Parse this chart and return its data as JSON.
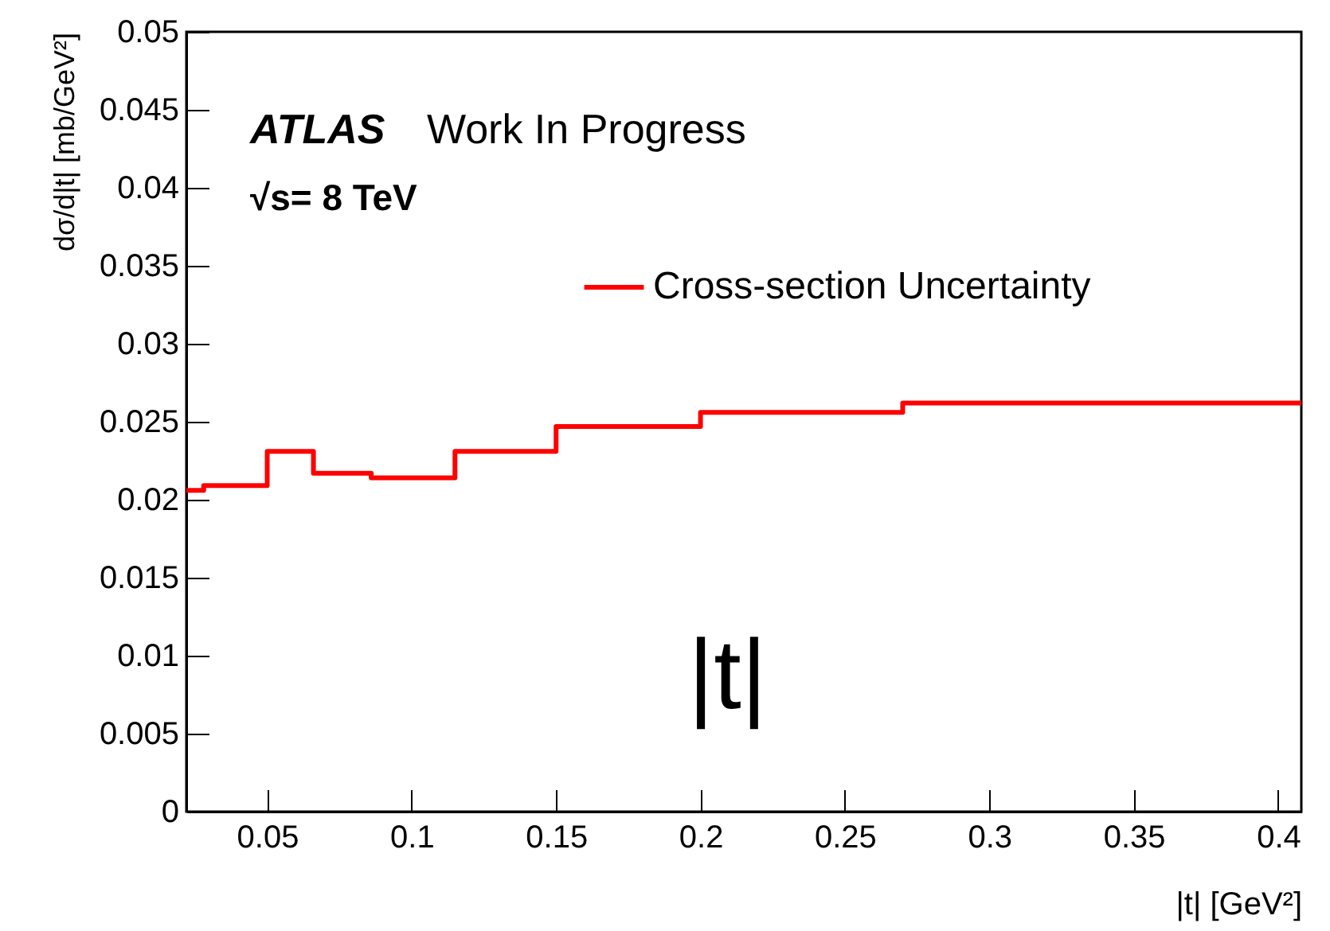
{
  "chart_data": {
    "type": "histogram",
    "xlabel": "|t|  [GeV²]",
    "ylabel": "dσ/d|t|  [mb/GeV²]",
    "annotations": [
      "ATLAS",
      "Work In Progress",
      "√s= 8 TeV",
      "|t|"
    ],
    "bins": [
      0.022,
      0.028,
      0.05,
      0.066,
      0.086,
      0.115,
      0.15,
      0.2,
      0.27,
      0.408
    ],
    "series": [
      {
        "name": "Cross-section Uncertainty",
        "color": "#ff0000",
        "values": [
          0.0206,
          0.0209,
          0.0231,
          0.0217,
          0.0214,
          0.0231,
          0.0247,
          0.0256,
          0.0262
        ]
      }
    ],
    "xlim": [
      0.022,
      0.408
    ],
    "xticks": [
      0.05,
      0.1,
      0.15,
      0.2,
      0.25,
      0.3,
      0.35,
      0.4
    ],
    "ylim": [
      0,
      0.05
    ],
    "yticks": [
      0,
      0.005,
      0.01,
      0.015,
      0.02,
      0.025,
      0.03,
      0.035,
      0.04,
      0.045,
      0.05
    ],
    "grid": false,
    "legend": "top right"
  }
}
